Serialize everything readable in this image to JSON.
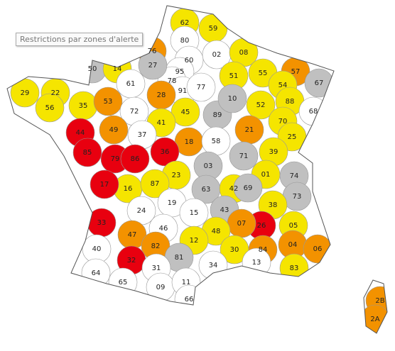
{
  "tooltip": "Restrictions par zones d'alerte",
  "departments": [
    {
      "code": "62",
      "color": "#f5e500"
    },
    {
      "code": "59",
      "color": "#f5e500"
    },
    {
      "code": "80",
      "color": "#ffffff"
    },
    {
      "code": "76",
      "color": "#f39200"
    },
    {
      "code": "02",
      "color": "#ffffff"
    },
    {
      "code": "08",
      "color": "#f5e500"
    },
    {
      "code": "50",
      "color": "#c0c0c0"
    },
    {
      "code": "14",
      "color": "#f5e500"
    },
    {
      "code": "60",
      "color": "#ffffff"
    },
    {
      "code": "95",
      "color": "#ffffff"
    },
    {
      "code": "78",
      "color": "#ffffff"
    },
    {
      "code": "91",
      "color": "#ffffff"
    },
    {
      "code": "77",
      "color": "#ffffff"
    },
    {
      "code": "51",
      "color": "#f5e500"
    },
    {
      "code": "55",
      "color": "#f5e500"
    },
    {
      "code": "57",
      "color": "#f39200"
    },
    {
      "code": "54",
      "color": "#f5e500"
    },
    {
      "code": "67",
      "color": "#c0c0c0"
    },
    {
      "code": "61",
      "color": "#ffffff"
    },
    {
      "code": "27",
      "color": "#c0c0c0"
    },
    {
      "code": "28",
      "color": "#f39200"
    },
    {
      "code": "29",
      "color": "#f5e500"
    },
    {
      "code": "22",
      "color": "#f5e500"
    },
    {
      "code": "56",
      "color": "#f5e500"
    },
    {
      "code": "35",
      "color": "#f5e500"
    },
    {
      "code": "53",
      "color": "#f39200"
    },
    {
      "code": "72",
      "color": "#ffffff"
    },
    {
      "code": "45",
      "color": "#f5e500"
    },
    {
      "code": "89",
      "color": "#c0c0c0"
    },
    {
      "code": "10",
      "color": "#c0c0c0"
    },
    {
      "code": "52",
      "color": "#f5e500"
    },
    {
      "code": "88",
      "color": "#f5e500"
    },
    {
      "code": "68",
      "color": "#ffffff"
    },
    {
      "code": "70",
      "color": "#f5e500"
    },
    {
      "code": "21",
      "color": "#f39200"
    },
    {
      "code": "41",
      "color": "#f5e500"
    },
    {
      "code": "37",
      "color": "#ffffff"
    },
    {
      "code": "44",
      "color": "#e8000f"
    },
    {
      "code": "49",
      "color": "#f39200"
    },
    {
      "code": "18",
      "color": "#f39200"
    },
    {
      "code": "58",
      "color": "#ffffff"
    },
    {
      "code": "25",
      "color": "#f5e500"
    },
    {
      "code": "39",
      "color": "#f5e500"
    },
    {
      "code": "71",
      "color": "#c0c0c0"
    },
    {
      "code": "85",
      "color": "#e8000f"
    },
    {
      "code": "79",
      "color": "#e8000f"
    },
    {
      "code": "86",
      "color": "#e8000f"
    },
    {
      "code": "36",
      "color": "#e8000f"
    },
    {
      "code": "01",
      "color": "#f5e500"
    },
    {
      "code": "74",
      "color": "#c0c0c0"
    },
    {
      "code": "73",
      "color": "#c0c0c0"
    },
    {
      "code": "03",
      "color": "#c0c0c0"
    },
    {
      "code": "23",
      "color": "#f5e500"
    },
    {
      "code": "16",
      "color": "#f5e500"
    },
    {
      "code": "17",
      "color": "#e8000f"
    },
    {
      "code": "87",
      "color": "#f5e500"
    },
    {
      "code": "63",
      "color": "#c0c0c0"
    },
    {
      "code": "42",
      "color": "#f5e500"
    },
    {
      "code": "69",
      "color": "#c0c0c0"
    },
    {
      "code": "38",
      "color": "#f5e500"
    },
    {
      "code": "19",
      "color": "#ffffff"
    },
    {
      "code": "15",
      "color": "#ffffff"
    },
    {
      "code": "43",
      "color": "#c0c0c0"
    },
    {
      "code": "24",
      "color": "#ffffff"
    },
    {
      "code": "33",
      "color": "#e8000f"
    },
    {
      "code": "26",
      "color": "#e8000f"
    },
    {
      "code": "05",
      "color": "#f5e500"
    },
    {
      "code": "07",
      "color": "#f39200"
    },
    {
      "code": "48",
      "color": "#f5e500"
    },
    {
      "code": "46",
      "color": "#ffffff"
    },
    {
      "code": "47",
      "color": "#f39200"
    },
    {
      "code": "12",
      "color": "#f5e500"
    },
    {
      "code": "82",
      "color": "#f39200"
    },
    {
      "code": "04",
      "color": "#f39200"
    },
    {
      "code": "06",
      "color": "#f39200"
    },
    {
      "code": "30",
      "color": "#f5e500"
    },
    {
      "code": "84",
      "color": "#f39200"
    },
    {
      "code": "40",
      "color": "#ffffff"
    },
    {
      "code": "32",
      "color": "#e8000f"
    },
    {
      "code": "81",
      "color": "#c0c0c0"
    },
    {
      "code": "13",
      "color": "#ffffff"
    },
    {
      "code": "83",
      "color": "#f5e500"
    },
    {
      "code": "34",
      "color": "#ffffff"
    },
    {
      "code": "64",
      "color": "#ffffff"
    },
    {
      "code": "31",
      "color": "#ffffff"
    },
    {
      "code": "65",
      "color": "#ffffff"
    },
    {
      "code": "09",
      "color": "#ffffff"
    },
    {
      "code": "11",
      "color": "#ffffff"
    },
    {
      "code": "66",
      "color": "#ffffff"
    },
    {
      "code": "2B",
      "color": "#f39200"
    },
    {
      "code": "2A",
      "color": "#f39200"
    }
  ]
}
